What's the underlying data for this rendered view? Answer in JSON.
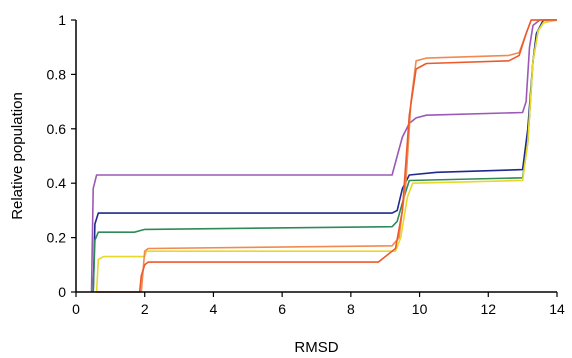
{
  "chart_data": {
    "type": "line",
    "title": "",
    "xlabel": "RMSD",
    "ylabel": "Relative population",
    "xlim": [
      0,
      14
    ],
    "ylim": [
      0,
      1
    ],
    "xticks": [
      0,
      2,
      4,
      6,
      8,
      10,
      12,
      14
    ],
    "yticks": [
      0,
      0.2,
      0.4,
      0.6,
      0.8,
      1
    ],
    "ytick_labels": [
      "0",
      "0.2",
      "0.4",
      "0.6",
      "0.8",
      "1"
    ],
    "grid": false,
    "legend": "none",
    "series": [
      {
        "color": "#9b59b6",
        "points": [
          [
            0.45,
            0
          ],
          [
            0.5,
            0.38
          ],
          [
            0.6,
            0.43
          ],
          [
            9.2,
            0.43
          ],
          [
            9.35,
            0.5
          ],
          [
            9.5,
            0.57
          ],
          [
            9.7,
            0.62
          ],
          [
            9.9,
            0.64
          ],
          [
            10.2,
            0.65
          ],
          [
            13.0,
            0.66
          ],
          [
            13.1,
            0.7
          ],
          [
            13.2,
            0.9
          ],
          [
            13.3,
            0.98
          ],
          [
            13.5,
            1.0
          ],
          [
            14.0,
            1.0
          ]
        ]
      },
      {
        "color": "#1f2a8c",
        "points": [
          [
            0.5,
            0
          ],
          [
            0.55,
            0.25
          ],
          [
            0.65,
            0.29
          ],
          [
            9.2,
            0.29
          ],
          [
            9.35,
            0.3
          ],
          [
            9.5,
            0.38
          ],
          [
            9.7,
            0.43
          ],
          [
            10.5,
            0.44
          ],
          [
            13.0,
            0.45
          ],
          [
            13.15,
            0.6
          ],
          [
            13.3,
            0.85
          ],
          [
            13.4,
            0.95
          ],
          [
            13.6,
            1.0
          ],
          [
            14.0,
            1.0
          ]
        ]
      },
      {
        "color": "#2e8b57",
        "points": [
          [
            0.5,
            0
          ],
          [
            0.55,
            0.19
          ],
          [
            0.65,
            0.22
          ],
          [
            1.7,
            0.22
          ],
          [
            2.0,
            0.23
          ],
          [
            9.2,
            0.24
          ],
          [
            9.35,
            0.26
          ],
          [
            9.55,
            0.35
          ],
          [
            9.7,
            0.41
          ],
          [
            13.0,
            0.42
          ],
          [
            13.15,
            0.55
          ],
          [
            13.3,
            0.85
          ],
          [
            13.45,
            0.96
          ],
          [
            13.6,
            0.99
          ],
          [
            14.0,
            1.0
          ]
        ]
      },
      {
        "color": "#e8d82a",
        "points": [
          [
            0.6,
            0
          ],
          [
            0.65,
            0.12
          ],
          [
            0.8,
            0.13
          ],
          [
            2.0,
            0.13
          ],
          [
            2.05,
            0.15
          ],
          [
            9.3,
            0.15
          ],
          [
            9.45,
            0.2
          ],
          [
            9.65,
            0.35
          ],
          [
            9.8,
            0.4
          ],
          [
            13.0,
            0.41
          ],
          [
            13.15,
            0.55
          ],
          [
            13.3,
            0.85
          ],
          [
            13.45,
            0.96
          ],
          [
            13.6,
            0.99
          ],
          [
            14.0,
            1.0
          ]
        ]
      },
      {
        "color": "#f08a50",
        "points": [
          [
            1.9,
            0
          ],
          [
            2.0,
            0.15
          ],
          [
            2.1,
            0.16
          ],
          [
            9.2,
            0.17
          ],
          [
            9.4,
            0.2
          ],
          [
            9.6,
            0.4
          ],
          [
            9.75,
            0.7
          ],
          [
            9.9,
            0.85
          ],
          [
            10.2,
            0.86
          ],
          [
            12.6,
            0.87
          ],
          [
            12.9,
            0.88
          ],
          [
            13.1,
            0.95
          ],
          [
            13.25,
            1.0
          ],
          [
            14.0,
            1.0
          ]
        ]
      },
      {
        "color": "#ec5a2c",
        "points": [
          [
            0.6,
            0
          ],
          [
            1.85,
            0
          ],
          [
            1.9,
            0.06
          ],
          [
            2.0,
            0.1
          ],
          [
            2.1,
            0.11
          ],
          [
            8.8,
            0.11
          ],
          [
            9.1,
            0.14
          ],
          [
            9.3,
            0.16
          ],
          [
            9.5,
            0.3
          ],
          [
            9.7,
            0.65
          ],
          [
            9.9,
            0.82
          ],
          [
            10.2,
            0.84
          ],
          [
            12.6,
            0.85
          ],
          [
            12.9,
            0.87
          ],
          [
            13.1,
            0.95
          ],
          [
            13.25,
            1.0
          ],
          [
            14.0,
            1.0
          ]
        ]
      }
    ]
  }
}
